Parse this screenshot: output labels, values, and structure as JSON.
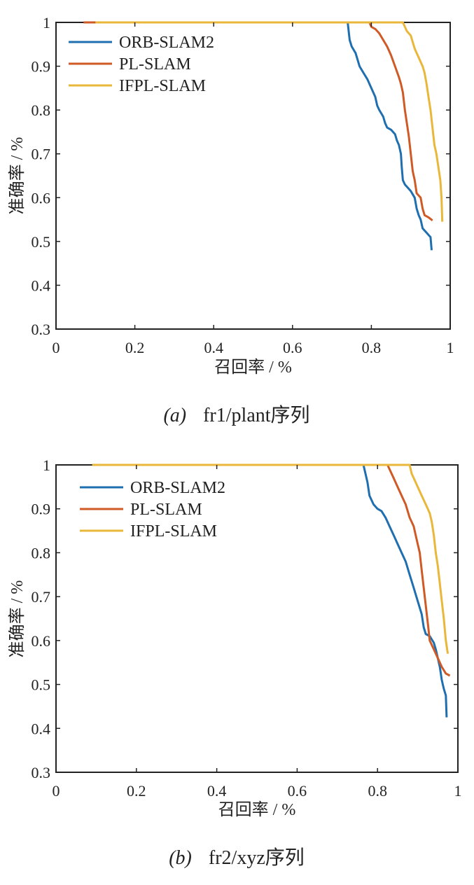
{
  "colors": {
    "ORB-SLAM2": "#1f6fb0",
    "PL-SLAM": "#cf5a26",
    "IFPL-SLAM": "#e9b73a",
    "axis": "#222222"
  },
  "chart_data": [
    {
      "type": "line",
      "caption_tag": "(a)",
      "caption_text": "fr1/plant序列",
      "xlabel": "召回率 / %",
      "ylabel": "准确率 / %",
      "xlim": [
        0,
        1
      ],
      "ylim": [
        0.3,
        1
      ],
      "xticks": [
        "0",
        "0.2",
        "0.4",
        "0.6",
        "0.8",
        "1"
      ],
      "yticks": [
        "0.3",
        "0.4",
        "0.5",
        "0.6",
        "0.7",
        "0.8",
        "0.9",
        "1"
      ],
      "legend_position": "top-left",
      "grid": false,
      "series": [
        {
          "name": "ORB-SLAM2",
          "points": [
            [
              0.07,
              1.0
            ],
            [
              0.74,
              1.0
            ],
            [
              0.745,
              0.96
            ],
            [
              0.75,
              0.945
            ],
            [
              0.76,
              0.93
            ],
            [
              0.765,
              0.915
            ],
            [
              0.77,
              0.9
            ],
            [
              0.78,
              0.885
            ],
            [
              0.79,
              0.87
            ],
            [
              0.8,
              0.85
            ],
            [
              0.81,
              0.83
            ],
            [
              0.815,
              0.81
            ],
            [
              0.82,
              0.8
            ],
            [
              0.83,
              0.785
            ],
            [
              0.835,
              0.77
            ],
            [
              0.84,
              0.76
            ],
            [
              0.85,
              0.755
            ],
            [
              0.86,
              0.745
            ],
            [
              0.865,
              0.73
            ],
            [
              0.87,
              0.72
            ],
            [
              0.875,
              0.7
            ],
            [
              0.877,
              0.67
            ],
            [
              0.88,
              0.64
            ],
            [
              0.885,
              0.63
            ],
            [
              0.89,
              0.625
            ],
            [
              0.9,
              0.615
            ],
            [
              0.91,
              0.6
            ],
            [
              0.915,
              0.575
            ],
            [
              0.92,
              0.56
            ],
            [
              0.925,
              0.55
            ],
            [
              0.93,
              0.53
            ],
            [
              0.935,
              0.525
            ],
            [
              0.94,
              0.52
            ],
            [
              0.945,
              0.515
            ],
            [
              0.95,
              0.51
            ],
            [
              0.953,
              0.48
            ]
          ]
        },
        {
          "name": "PL-SLAM",
          "points": [
            [
              0.07,
              1.0
            ],
            [
              0.795,
              1.0
            ],
            [
              0.8,
              0.99
            ],
            [
              0.81,
              0.985
            ],
            [
              0.82,
              0.975
            ],
            [
              0.83,
              0.96
            ],
            [
              0.84,
              0.945
            ],
            [
              0.85,
              0.925
            ],
            [
              0.86,
              0.9
            ],
            [
              0.87,
              0.875
            ],
            [
              0.875,
              0.86
            ],
            [
              0.88,
              0.84
            ],
            [
              0.885,
              0.8
            ],
            [
              0.89,
              0.77
            ],
            [
              0.895,
              0.74
            ],
            [
              0.9,
              0.7
            ],
            [
              0.905,
              0.66
            ],
            [
              0.91,
              0.64
            ],
            [
              0.915,
              0.61
            ],
            [
              0.92,
              0.605
            ],
            [
              0.925,
              0.6
            ],
            [
              0.93,
              0.575
            ],
            [
              0.935,
              0.56
            ],
            [
              0.945,
              0.555
            ],
            [
              0.955,
              0.548
            ]
          ]
        },
        {
          "name": "IFPL-SLAM",
          "points": [
            [
              0.1,
              1.0
            ],
            [
              0.88,
              1.0
            ],
            [
              0.885,
              0.99
            ],
            [
              0.89,
              0.98
            ],
            [
              0.9,
              0.97
            ],
            [
              0.905,
              0.955
            ],
            [
              0.91,
              0.94
            ],
            [
              0.92,
              0.92
            ],
            [
              0.93,
              0.9
            ],
            [
              0.935,
              0.885
            ],
            [
              0.94,
              0.86
            ],
            [
              0.945,
              0.83
            ],
            [
              0.95,
              0.8
            ],
            [
              0.955,
              0.76
            ],
            [
              0.96,
              0.72
            ],
            [
              0.965,
              0.7
            ],
            [
              0.97,
              0.67
            ],
            [
              0.975,
              0.64
            ],
            [
              0.978,
              0.6
            ],
            [
              0.98,
              0.545
            ]
          ]
        }
      ]
    },
    {
      "type": "line",
      "caption_tag": "(b)",
      "caption_text": "fr2/xyz序列",
      "xlabel": "召回率 / %",
      "ylabel": "准确率 / %",
      "xlim": [
        0,
        1
      ],
      "ylim": [
        0.3,
        1
      ],
      "xticks": [
        "0",
        "0.2",
        "0.4",
        "0.6",
        "0.8",
        "1"
      ],
      "yticks": [
        "0.3",
        "0.4",
        "0.5",
        "0.6",
        "0.7",
        "0.8",
        "0.9",
        "1"
      ],
      "legend_position": "top-left",
      "grid": false,
      "series": [
        {
          "name": "ORB-SLAM2",
          "points": [
            [
              0.09,
              1.0
            ],
            [
              0.765,
              1.0
            ],
            [
              0.77,
              0.98
            ],
            [
              0.775,
              0.96
            ],
            [
              0.78,
              0.93
            ],
            [
              0.79,
              0.91
            ],
            [
              0.8,
              0.9
            ],
            [
              0.81,
              0.895
            ],
            [
              0.82,
              0.88
            ],
            [
              0.83,
              0.86
            ],
            [
              0.84,
              0.84
            ],
            [
              0.85,
              0.82
            ],
            [
              0.86,
              0.8
            ],
            [
              0.87,
              0.78
            ],
            [
              0.88,
              0.75
            ],
            [
              0.89,
              0.72
            ],
            [
              0.9,
              0.69
            ],
            [
              0.91,
              0.66
            ],
            [
              0.915,
              0.63
            ],
            [
              0.92,
              0.615
            ],
            [
              0.93,
              0.61
            ],
            [
              0.94,
              0.595
            ],
            [
              0.945,
              0.58
            ],
            [
              0.95,
              0.56
            ],
            [
              0.955,
              0.54
            ],
            [
              0.96,
              0.51
            ],
            [
              0.965,
              0.49
            ],
            [
              0.97,
              0.475
            ],
            [
              0.972,
              0.425
            ]
          ]
        },
        {
          "name": "PL-SLAM",
          "points": [
            [
              0.09,
              1.0
            ],
            [
              0.825,
              1.0
            ],
            [
              0.83,
              0.99
            ],
            [
              0.84,
              0.97
            ],
            [
              0.85,
              0.95
            ],
            [
              0.86,
              0.93
            ],
            [
              0.87,
              0.91
            ],
            [
              0.88,
              0.88
            ],
            [
              0.89,
              0.86
            ],
            [
              0.895,
              0.84
            ],
            [
              0.9,
              0.82
            ],
            [
              0.905,
              0.8
            ],
            [
              0.91,
              0.76
            ],
            [
              0.915,
              0.72
            ],
            [
              0.92,
              0.68
            ],
            [
              0.925,
              0.64
            ],
            [
              0.93,
              0.6
            ],
            [
              0.94,
              0.58
            ],
            [
              0.95,
              0.56
            ],
            [
              0.96,
              0.54
            ],
            [
              0.97,
              0.525
            ],
            [
              0.98,
              0.52
            ]
          ]
        },
        {
          "name": "IFPL-SLAM",
          "points": [
            [
              0.09,
              1.0
            ],
            [
              0.88,
              1.0
            ],
            [
              0.885,
              0.98
            ],
            [
              0.89,
              0.97
            ],
            [
              0.9,
              0.95
            ],
            [
              0.91,
              0.93
            ],
            [
              0.92,
              0.91
            ],
            [
              0.93,
              0.89
            ],
            [
              0.935,
              0.87
            ],
            [
              0.94,
              0.84
            ],
            [
              0.945,
              0.8
            ],
            [
              0.95,
              0.77
            ],
            [
              0.955,
              0.73
            ],
            [
              0.96,
              0.69
            ],
            [
              0.965,
              0.65
            ],
            [
              0.968,
              0.62
            ],
            [
              0.97,
              0.6
            ],
            [
              0.975,
              0.57
            ]
          ]
        }
      ]
    }
  ]
}
